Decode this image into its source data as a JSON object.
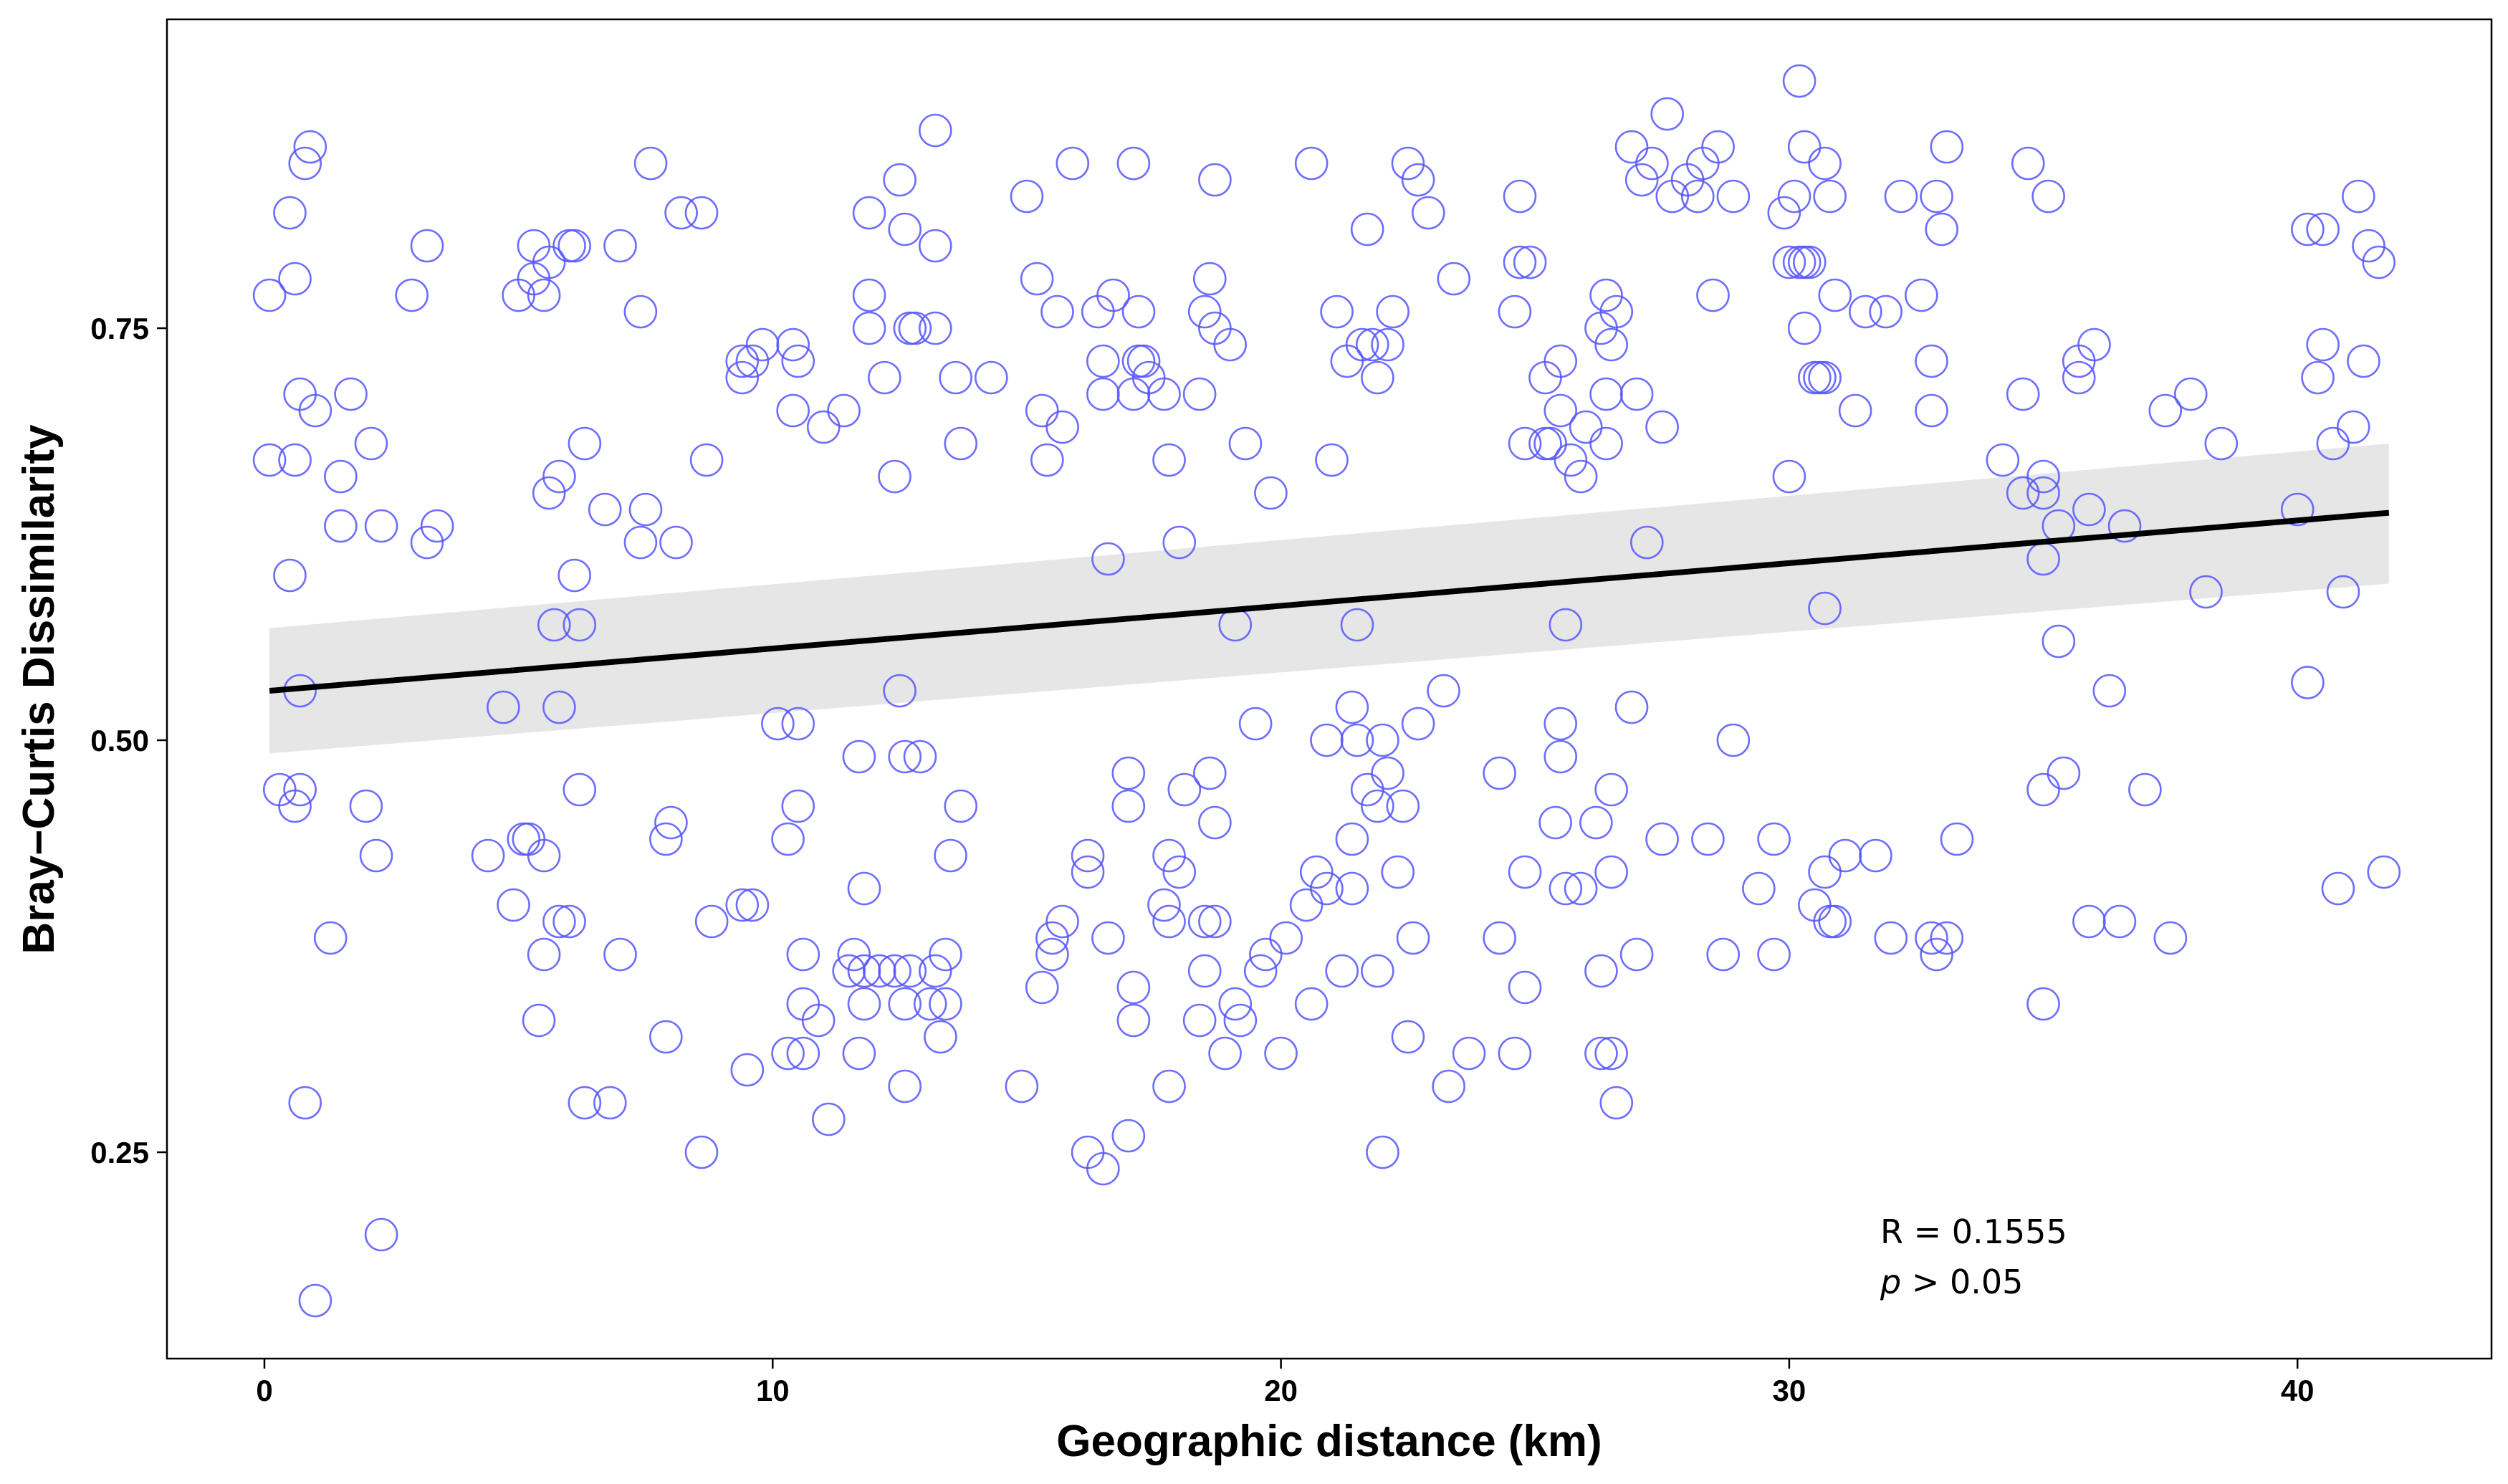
{
  "chart_data": {
    "type": "scatter",
    "title": "",
    "xlabel": "Geographic distance (km)",
    "ylabel": "Bray−Curtis Dissimilarity",
    "xlim": [
      -2.3,
      43.8
    ],
    "ylim": [
      0.13,
      0.92
    ],
    "xticks": [
      0,
      10,
      20,
      30,
      40
    ],
    "xtick_labels": [
      "0",
      "10",
      "20",
      "30",
      "40"
    ],
    "yticks": [
      0.25,
      0.5,
      0.75
    ],
    "ytick_labels": [
      "0.25",
      "0.50",
      "0.75"
    ],
    "grid": false,
    "point_color": "#5555ff",
    "point_style": "open-circle",
    "regression": {
      "type": "linear",
      "x_range": [
        0.1,
        41.8
      ],
      "y_at_start": 0.53,
      "y_at_end": 0.638,
      "ci_lower": [
        0.492,
        0.595
      ],
      "ci_upper": [
        0.568,
        0.68
      ],
      "line_color": "#000000",
      "band_color": "#e6e6e6"
    },
    "annotation": {
      "r_text": "R = 0.1555",
      "p_symbol": "p",
      "p_text": " > 0.05"
    },
    "points": [
      [
        0.1,
        0.77
      ],
      [
        0.1,
        0.67
      ],
      [
        0.5,
        0.82
      ],
      [
        0.5,
        0.6
      ],
      [
        0.6,
        0.67
      ],
      [
        0.6,
        0.78
      ],
      [
        0.7,
        0.71
      ],
      [
        0.7,
        0.53
      ],
      [
        0.3,
        0.47
      ],
      [
        0.6,
        0.46
      ],
      [
        0.7,
        0.47
      ],
      [
        0.8,
        0.85
      ],
      [
        0.9,
        0.86
      ],
      [
        1.0,
        0.7
      ],
      [
        0.8,
        0.28
      ],
      [
        1.0,
        0.16
      ],
      [
        1.3,
        0.38
      ],
      [
        1.5,
        0.66
      ],
      [
        1.5,
        0.63
      ],
      [
        1.7,
        0.71
      ],
      [
        2.1,
        0.68
      ],
      [
        2.0,
        0.46
      ],
      [
        2.2,
        0.43
      ],
      [
        2.3,
        0.63
      ],
      [
        2.3,
        0.2
      ],
      [
        2.9,
        0.77
      ],
      [
        3.2,
        0.8
      ],
      [
        3.2,
        0.62
      ],
      [
        3.4,
        0.63
      ],
      [
        4.7,
        0.52
      ],
      [
        4.4,
        0.43
      ],
      [
        4.9,
        0.4
      ],
      [
        5.0,
        0.77
      ],
      [
        5.1,
        0.44
      ],
      [
        5.2,
        0.44
      ],
      [
        5.3,
        0.8
      ],
      [
        5.3,
        0.78
      ],
      [
        5.5,
        0.77
      ],
      [
        5.5,
        0.43
      ],
      [
        5.5,
        0.37
      ],
      [
        5.4,
        0.33
      ],
      [
        5.6,
        0.65
      ],
      [
        5.7,
        0.57
      ],
      [
        5.6,
        0.79
      ],
      [
        5.8,
        0.39
      ],
      [
        5.8,
        0.52
      ],
      [
        5.8,
        0.66
      ],
      [
        6.0,
        0.8
      ],
      [
        6.0,
        0.39
      ],
      [
        6.1,
        0.6
      ],
      [
        6.1,
        0.8
      ],
      [
        6.2,
        0.57
      ],
      [
        6.2,
        0.47
      ],
      [
        6.3,
        0.68
      ],
      [
        6.3,
        0.28
      ],
      [
        6.7,
        0.64
      ],
      [
        6.8,
        0.28
      ],
      [
        7.0,
        0.37
      ],
      [
        7.0,
        0.8
      ],
      [
        7.4,
        0.76
      ],
      [
        7.4,
        0.62
      ],
      [
        7.5,
        0.64
      ],
      [
        7.6,
        0.85
      ],
      [
        7.9,
        0.32
      ],
      [
        7.9,
        0.44
      ],
      [
        8.0,
        0.45
      ],
      [
        8.1,
        0.62
      ],
      [
        8.2,
        0.82
      ],
      [
        8.6,
        0.82
      ],
      [
        8.6,
        0.25
      ],
      [
        8.7,
        0.67
      ],
      [
        8.8,
        0.39
      ],
      [
        9.4,
        0.73
      ],
      [
        9.4,
        0.72
      ],
      [
        9.4,
        0.4
      ],
      [
        9.5,
        0.3
      ],
      [
        9.6,
        0.4
      ],
      [
        9.8,
        0.74
      ],
      [
        9.6,
        0.73
      ],
      [
        10.1,
        0.51
      ],
      [
        10.3,
        0.31
      ],
      [
        10.4,
        0.7
      ],
      [
        10.3,
        0.44
      ],
      [
        10.4,
        0.74
      ],
      [
        10.5,
        0.51
      ],
      [
        10.5,
        0.46
      ],
      [
        10.5,
        0.73
      ],
      [
        10.6,
        0.31
      ],
      [
        10.6,
        0.37
      ],
      [
        10.6,
        0.34
      ],
      [
        10.9,
        0.33
      ],
      [
        11.0,
        0.69
      ],
      [
        11.1,
        0.27
      ],
      [
        11.4,
        0.7
      ],
      [
        11.5,
        0.36
      ],
      [
        11.6,
        0.37
      ],
      [
        11.7,
        0.49
      ],
      [
        11.7,
        0.31
      ],
      [
        11.8,
        0.34
      ],
      [
        11.8,
        0.36
      ],
      [
        11.8,
        0.41
      ],
      [
        11.9,
        0.82
      ],
      [
        11.9,
        0.75
      ],
      [
        11.9,
        0.77
      ],
      [
        12.1,
        0.36
      ],
      [
        12.2,
        0.72
      ],
      [
        12.4,
        0.36
      ],
      [
        12.4,
        0.66
      ],
      [
        12.5,
        0.53
      ],
      [
        12.6,
        0.34
      ],
      [
        12.5,
        0.84
      ],
      [
        12.6,
        0.81
      ],
      [
        12.6,
        0.29
      ],
      [
        12.6,
        0.49
      ],
      [
        12.7,
        0.36
      ],
      [
        12.7,
        0.75
      ],
      [
        12.9,
        0.49
      ],
      [
        12.8,
        0.75
      ],
      [
        13.1,
        0.34
      ],
      [
        13.2,
        0.75
      ],
      [
        13.2,
        0.87
      ],
      [
        13.2,
        0.8
      ],
      [
        13.2,
        0.36
      ],
      [
        13.3,
        0.32
      ],
      [
        13.4,
        0.37
      ],
      [
        13.4,
        0.34
      ],
      [
        13.5,
        0.43
      ],
      [
        13.6,
        0.72
      ],
      [
        13.7,
        0.68
      ],
      [
        13.7,
        0.46
      ],
      [
        14.3,
        0.72
      ],
      [
        14.9,
        0.29
      ],
      [
        15.0,
        0.83
      ],
      [
        15.2,
        0.78
      ],
      [
        15.3,
        0.7
      ],
      [
        15.3,
        0.35
      ],
      [
        15.4,
        0.67
      ],
      [
        15.5,
        0.37
      ],
      [
        15.5,
        0.38
      ],
      [
        15.6,
        0.76
      ],
      [
        15.7,
        0.39
      ],
      [
        15.7,
        0.69
      ],
      [
        15.9,
        0.85
      ],
      [
        16.2,
        0.43
      ],
      [
        16.2,
        0.42
      ],
      [
        16.2,
        0.25
      ],
      [
        16.4,
        0.76
      ],
      [
        16.5,
        0.71
      ],
      [
        16.5,
        0.73
      ],
      [
        16.5,
        0.24
      ],
      [
        16.6,
        0.61
      ],
      [
        16.6,
        0.38
      ],
      [
        16.7,
        0.77
      ],
      [
        17.0,
        0.26
      ],
      [
        17.0,
        0.48
      ],
      [
        17.0,
        0.46
      ],
      [
        17.1,
        0.85
      ],
      [
        17.1,
        0.35
      ],
      [
        17.1,
        0.71
      ],
      [
        17.1,
        0.33
      ],
      [
        17.2,
        0.73
      ],
      [
        17.2,
        0.76
      ],
      [
        17.3,
        0.73
      ],
      [
        17.4,
        0.72
      ],
      [
        17.7,
        0.71
      ],
      [
        17.7,
        0.4
      ],
      [
        17.8,
        0.43
      ],
      [
        17.8,
        0.29
      ],
      [
        17.8,
        0.39
      ],
      [
        17.8,
        0.67
      ],
      [
        18.0,
        0.42
      ],
      [
        18.0,
        0.62
      ],
      [
        18.1,
        0.47
      ],
      [
        18.4,
        0.33
      ],
      [
        18.4,
        0.71
      ],
      [
        18.5,
        0.36
      ],
      [
        18.5,
        0.39
      ],
      [
        18.5,
        0.76
      ],
      [
        18.6,
        0.78
      ],
      [
        18.6,
        0.48
      ],
      [
        18.7,
        0.39
      ],
      [
        18.7,
        0.75
      ],
      [
        18.7,
        0.45
      ],
      [
        18.7,
        0.84
      ],
      [
        18.9,
        0.31
      ],
      [
        19.0,
        0.74
      ],
      [
        19.1,
        0.57
      ],
      [
        19.1,
        0.34
      ],
      [
        19.2,
        0.33
      ],
      [
        19.3,
        0.68
      ],
      [
        19.5,
        0.51
      ],
      [
        19.6,
        0.36
      ],
      [
        19.7,
        0.37
      ],
      [
        19.8,
        0.65
      ],
      [
        20.0,
        0.31
      ],
      [
        20.1,
        0.38
      ],
      [
        20.5,
        0.4
      ],
      [
        20.6,
        0.85
      ],
      [
        20.6,
        0.34
      ],
      [
        20.7,
        0.42
      ],
      [
        20.9,
        0.5
      ],
      [
        20.9,
        0.41
      ],
      [
        21.0,
        0.67
      ],
      [
        21.1,
        0.76
      ],
      [
        21.2,
        0.36
      ],
      [
        21.3,
        0.73
      ],
      [
        21.4,
        0.44
      ],
      [
        21.4,
        0.41
      ],
      [
        21.4,
        0.52
      ],
      [
        21.5,
        0.5
      ],
      [
        21.5,
        0.57
      ],
      [
        21.6,
        0.74
      ],
      [
        21.7,
        0.81
      ],
      [
        21.7,
        0.47
      ],
      [
        21.8,
        0.74
      ],
      [
        21.9,
        0.36
      ],
      [
        21.9,
        0.72
      ],
      [
        21.9,
        0.46
      ],
      [
        22.0,
        0.5
      ],
      [
        22.0,
        0.25
      ],
      [
        22.1,
        0.48
      ],
      [
        22.1,
        0.74
      ],
      [
        22.2,
        0.76
      ],
      [
        22.3,
        0.42
      ],
      [
        22.4,
        0.46
      ],
      [
        22.5,
        0.85
      ],
      [
        22.5,
        0.32
      ],
      [
        22.6,
        0.38
      ],
      [
        22.7,
        0.51
      ],
      [
        22.7,
        0.84
      ],
      [
        22.9,
        0.82
      ],
      [
        23.2,
        0.53
      ],
      [
        23.3,
        0.29
      ],
      [
        23.4,
        0.78
      ],
      [
        23.7,
        0.31
      ],
      [
        24.3,
        0.48
      ],
      [
        24.3,
        0.38
      ],
      [
        24.6,
        0.76
      ],
      [
        24.6,
        0.31
      ],
      [
        24.7,
        0.79
      ],
      [
        24.7,
        0.83
      ],
      [
        24.8,
        0.42
      ],
      [
        24.8,
        0.68
      ],
      [
        24.8,
        0.35
      ],
      [
        24.9,
        0.79
      ],
      [
        25.2,
        0.72
      ],
      [
        25.2,
        0.68
      ],
      [
        25.3,
        0.68
      ],
      [
        25.4,
        0.45
      ],
      [
        25.5,
        0.51
      ],
      [
        25.5,
        0.49
      ],
      [
        25.5,
        0.73
      ],
      [
        25.5,
        0.7
      ],
      [
        25.6,
        0.41
      ],
      [
        25.6,
        0.57
      ],
      [
        25.7,
        0.67
      ],
      [
        25.9,
        0.66
      ],
      [
        25.9,
        0.41
      ],
      [
        26.0,
        0.69
      ],
      [
        26.2,
        0.45
      ],
      [
        26.3,
        0.75
      ],
      [
        26.3,
        0.36
      ],
      [
        26.3,
        0.31
      ],
      [
        26.4,
        0.77
      ],
      [
        26.4,
        0.68
      ],
      [
        26.4,
        0.71
      ],
      [
        26.5,
        0.47
      ],
      [
        26.5,
        0.74
      ],
      [
        26.5,
        0.31
      ],
      [
        26.5,
        0.42
      ],
      [
        26.6,
        0.76
      ],
      [
        26.6,
        0.28
      ],
      [
        26.9,
        0.86
      ],
      [
        26.9,
        0.52
      ],
      [
        27.0,
        0.37
      ],
      [
        27.0,
        0.71
      ],
      [
        27.1,
        0.84
      ],
      [
        27.2,
        0.62
      ],
      [
        27.3,
        0.85
      ],
      [
        27.5,
        0.69
      ],
      [
        27.5,
        0.44
      ],
      [
        27.6,
        0.88
      ],
      [
        27.7,
        0.83
      ],
      [
        28.0,
        0.84
      ],
      [
        28.2,
        0.83
      ],
      [
        28.3,
        0.85
      ],
      [
        28.4,
        0.44
      ],
      [
        28.5,
        0.77
      ],
      [
        28.6,
        0.86
      ],
      [
        28.7,
        0.37
      ],
      [
        28.9,
        0.5
      ],
      [
        28.9,
        0.83
      ],
      [
        29.4,
        0.41
      ],
      [
        29.7,
        0.44
      ],
      [
        29.7,
        0.37
      ],
      [
        29.9,
        0.82
      ],
      [
        30.0,
        0.66
      ],
      [
        30.0,
        0.79
      ],
      [
        30.1,
        0.83
      ],
      [
        30.2,
        0.79
      ],
      [
        30.2,
        0.9
      ],
      [
        30.3,
        0.86
      ],
      [
        30.3,
        0.79
      ],
      [
        30.3,
        0.75
      ],
      [
        30.4,
        0.79
      ],
      [
        30.5,
        0.72
      ],
      [
        30.5,
        0.4
      ],
      [
        30.6,
        0.72
      ],
      [
        30.7,
        0.85
      ],
      [
        30.7,
        0.42
      ],
      [
        30.7,
        0.58
      ],
      [
        30.7,
        0.72
      ],
      [
        30.8,
        0.83
      ],
      [
        30.8,
        0.39
      ],
      [
        30.9,
        0.77
      ],
      [
        30.9,
        0.39
      ],
      [
        31.1,
        0.43
      ],
      [
        31.3,
        0.7
      ],
      [
        31.5,
        0.76
      ],
      [
        31.7,
        0.43
      ],
      [
        31.9,
        0.76
      ],
      [
        32.0,
        0.38
      ],
      [
        32.2,
        0.83
      ],
      [
        32.6,
        0.77
      ],
      [
        32.8,
        0.73
      ],
      [
        32.8,
        0.7
      ],
      [
        32.8,
        0.38
      ],
      [
        32.9,
        0.83
      ],
      [
        32.9,
        0.37
      ],
      [
        33.0,
        0.81
      ],
      [
        33.1,
        0.38
      ],
      [
        33.1,
        0.86
      ],
      [
        33.3,
        0.44
      ],
      [
        34.2,
        0.67
      ],
      [
        34.6,
        0.71
      ],
      [
        34.6,
        0.65
      ],
      [
        34.7,
        0.85
      ],
      [
        35.0,
        0.66
      ],
      [
        35.0,
        0.65
      ],
      [
        35.0,
        0.34
      ],
      [
        35.0,
        0.47
      ],
      [
        35.0,
        0.61
      ],
      [
        35.1,
        0.83
      ],
      [
        35.3,
        0.63
      ],
      [
        35.3,
        0.56
      ],
      [
        35.4,
        0.48
      ],
      [
        35.7,
        0.72
      ],
      [
        35.7,
        0.73
      ],
      [
        35.9,
        0.39
      ],
      [
        35.9,
        0.64
      ],
      [
        36.0,
        0.74
      ],
      [
        36.3,
        0.53
      ],
      [
        36.5,
        0.39
      ],
      [
        36.6,
        0.63
      ],
      [
        37.0,
        0.47
      ],
      [
        37.4,
        0.7
      ],
      [
        37.5,
        0.38
      ],
      [
        37.9,
        0.71
      ],
      [
        38.2,
        0.59
      ],
      [
        38.5,
        0.68
      ],
      [
        40.0,
        0.64
      ],
      [
        40.2,
        0.81
      ],
      [
        40.2,
        0.535
      ],
      [
        40.4,
        0.72
      ],
      [
        40.5,
        0.81
      ],
      [
        40.5,
        0.74
      ],
      [
        40.7,
        0.68
      ],
      [
        40.8,
        0.41
      ],
      [
        40.9,
        0.59
      ],
      [
        41.1,
        0.69
      ],
      [
        41.2,
        0.83
      ],
      [
        41.3,
        0.73
      ],
      [
        41.4,
        0.8
      ],
      [
        41.6,
        0.79
      ],
      [
        41.7,
        0.42
      ]
    ]
  }
}
